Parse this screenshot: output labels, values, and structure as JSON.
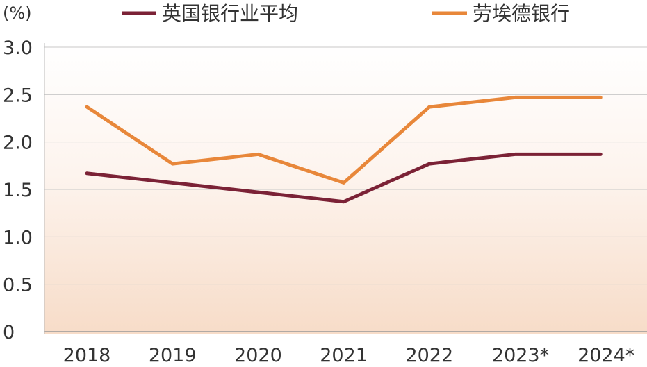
{
  "chart_data": {
    "type": "line",
    "unit_label": "(%)",
    "categories": [
      "2018",
      "2019",
      "2020",
      "2021",
      "2022",
      "2023*",
      "2024*"
    ],
    "yticks": [
      "3.0",
      "2.5",
      "2.0",
      "1.5",
      "1.0",
      "0.5",
      "0"
    ],
    "ylim": [
      0,
      3.0
    ],
    "grid": true,
    "legend_position": "top",
    "series": [
      {
        "name": "英国银行业平均",
        "color": "#7b2236",
        "values": [
          1.67,
          1.57,
          1.47,
          1.37,
          1.77,
          1.87,
          1.87
        ]
      },
      {
        "name": "劳埃德银行",
        "color": "#e8873a",
        "values": [
          2.37,
          1.77,
          1.87,
          1.57,
          2.37,
          2.47,
          2.47
        ]
      }
    ]
  }
}
